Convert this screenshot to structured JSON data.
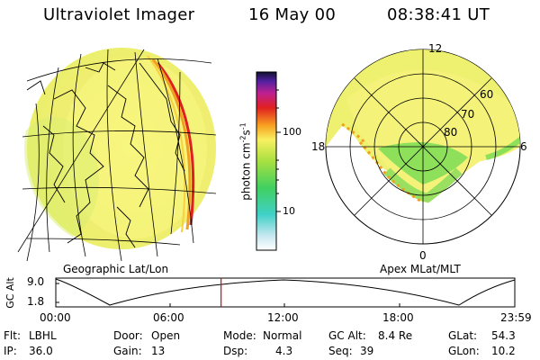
{
  "header": {
    "title": "Ultraviolet Imager",
    "date": "16 May 00",
    "time": "08:38:41 UT"
  },
  "colorbar": {
    "unit_prefix": "photon cm",
    "unit_sup1": "-2",
    "unit_mid": "s",
    "unit_sup2": "-1",
    "tick_high": "100",
    "tick_low": "10"
  },
  "polar": {
    "mlt_top": "12",
    "mlt_bottom": "0",
    "mlt_left": "18",
    "mlt_right": "6",
    "lat_60": "60",
    "lat_70": "70",
    "lat_80": "80"
  },
  "labels": {
    "geographic": "Geographic Lat/Lon",
    "apex": "Apex MLat/MLT"
  },
  "altitude_panel": {
    "axis_label": "GC Alt",
    "y_max": "9.0",
    "y_min": "1.8",
    "time_ticks": [
      "00:00",
      "06:00",
      "12:00",
      "18:00",
      "23:59"
    ],
    "current_time_fraction": 0.3601
  },
  "info": {
    "flt_label": "Flt:",
    "flt_value": "LBHL",
    "door_label": "Door:",
    "door_value": "Open",
    "mode_label": "Mode:",
    "mode_value": "Normal",
    "gcalt_label": "GC Alt:",
    "gcalt_value": "8.4 Re",
    "glat_label": "GLat:",
    "glat_value": "54.3",
    "ip_label": "IP:",
    "ip_value": "36.0",
    "gain_label": "Gain:",
    "gain_value": "13",
    "dsp_label": "Dsp:",
    "dsp_value": "4.3",
    "seq_label": "Seq:",
    "seq_value": "39",
    "glon_label": "GLon:",
    "glon_value": "10.2"
  },
  "colors": {
    "marker": "#e00000",
    "aurora_bg": "#f2f07a",
    "aurora_green": "#8ee05a"
  }
}
